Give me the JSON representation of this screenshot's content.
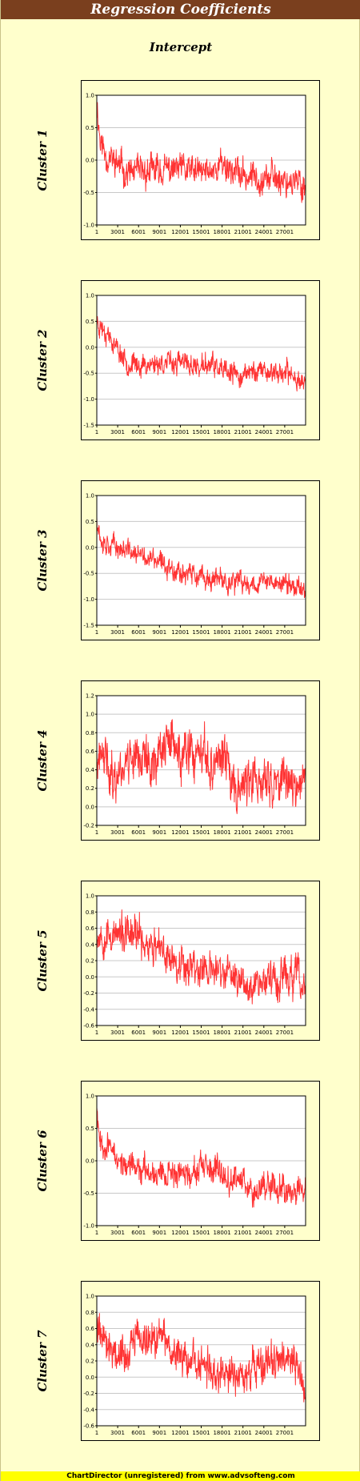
{
  "title": "Regression Coefficients",
  "subtitle": "Intercept",
  "footer": "ChartDirector (unregistered) from www.advsofteng.com",
  "series_color": "#ff3333",
  "chart_data": [
    {
      "type": "line",
      "label": "Cluster 1",
      "x_ticks": [
        "1",
        "3001",
        "6001",
        "9001",
        "12001",
        "15001",
        "18001",
        "21001",
        "24001",
        "27001"
      ],
      "x_range": [
        1,
        30000
      ],
      "y_ticks": [
        "1.0",
        "0.5",
        "0.0",
        "-0.5",
        "-1.0"
      ],
      "ylim": [
        -1.0,
        1.0
      ],
      "grid": true,
      "trend": [
        [
          1,
          0.9
        ],
        [
          500,
          0.3
        ],
        [
          1500,
          0.05
        ],
        [
          3000,
          -0.05
        ],
        [
          4500,
          -0.2
        ],
        [
          6001,
          -0.2
        ],
        [
          9001,
          -0.15
        ],
        [
          12001,
          -0.15
        ],
        [
          15001,
          -0.2
        ],
        [
          16500,
          -0.15
        ],
        [
          18001,
          -0.05
        ],
        [
          19500,
          -0.15
        ],
        [
          21001,
          -0.25
        ],
        [
          24001,
          -0.25
        ],
        [
          27001,
          -0.3
        ],
        [
          30000,
          -0.4
        ]
      ],
      "amplitude": 0.25,
      "seed": 11
    },
    {
      "type": "line",
      "label": "Cluster 2",
      "x_ticks": [
        "1",
        "3001",
        "6001",
        "9001",
        "12001",
        "15001",
        "18001",
        "21001",
        "24001",
        "27001"
      ],
      "x_range": [
        1,
        30000
      ],
      "y_ticks": [
        "1.0",
        "0.5",
        "0.0",
        "-0.5",
        "-1.0",
        "-1.5"
      ],
      "ylim": [
        -1.5,
        1.0
      ],
      "grid": true,
      "trend": [
        [
          1,
          0.5
        ],
        [
          1500,
          0.3
        ],
        [
          3001,
          -0.05
        ],
        [
          4500,
          -0.3
        ],
        [
          6001,
          -0.35
        ],
        [
          9001,
          -0.3
        ],
        [
          12001,
          -0.3
        ],
        [
          15001,
          -0.4
        ],
        [
          16500,
          -0.3
        ],
        [
          18001,
          -0.5
        ],
        [
          21001,
          -0.55
        ],
        [
          22500,
          -0.45
        ],
        [
          24001,
          -0.45
        ],
        [
          27001,
          -0.5
        ],
        [
          30000,
          -0.65
        ]
      ],
      "amplitude": 0.22,
      "seed": 23
    },
    {
      "type": "line",
      "label": "Cluster 3",
      "x_ticks": [
        "1",
        "3001",
        "6001",
        "9001",
        "12001",
        "15001",
        "18001",
        "21001",
        "24001",
        "27001"
      ],
      "x_range": [
        1,
        30000
      ],
      "y_ticks": [
        "1.0",
        "0.5",
        "0.0",
        "-0.5",
        "-1.0",
        "-1.5"
      ],
      "ylim": [
        -1.5,
        1.0
      ],
      "grid": true,
      "trend": [
        [
          1,
          0.6
        ],
        [
          600,
          0.15
        ],
        [
          3001,
          0.0
        ],
        [
          6001,
          -0.15
        ],
        [
          9001,
          -0.3
        ],
        [
          12001,
          -0.45
        ],
        [
          15001,
          -0.6
        ],
        [
          18001,
          -0.65
        ],
        [
          21001,
          -0.7
        ],
        [
          24001,
          -0.65
        ],
        [
          27001,
          -0.7
        ],
        [
          30000,
          -0.8
        ]
      ],
      "amplitude": 0.22,
      "seed": 37
    },
    {
      "type": "line",
      "label": "Cluster 4",
      "x_ticks": [
        "1",
        "3001",
        "6001",
        "9001",
        "12001",
        "15001",
        "18001",
        "21001",
        "24001",
        "27001"
      ],
      "x_range": [
        1,
        30000
      ],
      "y_ticks": [
        "1.2",
        "1.0",
        "0.8",
        "0.6",
        "0.4",
        "0.2",
        "0.0",
        "-0.2"
      ],
      "ylim": [
        -0.2,
        1.2
      ],
      "grid": true,
      "trend": [
        [
          1,
          0.45
        ],
        [
          1500,
          0.5
        ],
        [
          2500,
          0.3
        ],
        [
          4500,
          0.55
        ],
        [
          6001,
          0.6
        ],
        [
          7500,
          0.45
        ],
        [
          9001,
          0.6
        ],
        [
          10500,
          0.7
        ],
        [
          12001,
          0.55
        ],
        [
          15001,
          0.5
        ],
        [
          16500,
          0.45
        ],
        [
          18001,
          0.55
        ],
        [
          19500,
          0.3
        ],
        [
          21001,
          0.25
        ],
        [
          24001,
          0.25
        ],
        [
          27001,
          0.3
        ],
        [
          30000,
          0.25
        ]
      ],
      "amplitude": 0.28,
      "seed": 41
    },
    {
      "type": "line",
      "label": "Cluster 5",
      "x_ticks": [
        "1",
        "3001",
        "6001",
        "9001",
        "12001",
        "15001",
        "18001",
        "21001",
        "24001",
        "27001"
      ],
      "x_range": [
        1,
        30000
      ],
      "y_ticks": [
        "1.0",
        "0.8",
        "0.6",
        "0.4",
        "0.2",
        "0.0",
        "-0.2",
        "-0.4",
        "-0.6"
      ],
      "ylim": [
        -0.6,
        1.0
      ],
      "grid": true,
      "trend": [
        [
          1,
          0.55
        ],
        [
          3001,
          0.5
        ],
        [
          6001,
          0.5
        ],
        [
          7500,
          0.4
        ],
        [
          9001,
          0.3
        ],
        [
          12001,
          0.2
        ],
        [
          15001,
          0.1
        ],
        [
          18001,
          0.05
        ],
        [
          21001,
          -0.05
        ],
        [
          24001,
          -0.05
        ],
        [
          27001,
          0.0
        ],
        [
          29000,
          0.0
        ],
        [
          30000,
          -0.25
        ]
      ],
      "amplitude": 0.25,
      "seed": 53
    },
    {
      "type": "line",
      "label": "Cluster 6",
      "x_ticks": [
        "1",
        "3001",
        "6001",
        "9001",
        "12001",
        "15001",
        "18001",
        "21001",
        "24001",
        "27001"
      ],
      "x_range": [
        1,
        30000
      ],
      "y_ticks": [
        "1.0",
        "0.5",
        "0.0",
        "-0.5",
        "-1.0"
      ],
      "ylim": [
        -1.0,
        1.0
      ],
      "grid": true,
      "trend": [
        [
          1,
          0.9
        ],
        [
          500,
          0.3
        ],
        [
          1500,
          0.25
        ],
        [
          3001,
          0.0
        ],
        [
          6001,
          -0.15
        ],
        [
          9001,
          -0.15
        ],
        [
          12001,
          -0.2
        ],
        [
          15001,
          -0.15
        ],
        [
          18001,
          -0.2
        ],
        [
          21001,
          -0.3
        ],
        [
          22500,
          -0.45
        ],
        [
          24001,
          -0.35
        ],
        [
          27001,
          -0.4
        ],
        [
          30000,
          -0.45
        ]
      ],
      "amplitude": 0.22,
      "seed": 67
    },
    {
      "type": "line",
      "label": "Cluster 7",
      "x_ticks": [
        "1",
        "3001",
        "6001",
        "9001",
        "12001",
        "15001",
        "18001",
        "21001",
        "24001",
        "27001"
      ],
      "x_range": [
        1,
        30000
      ],
      "y_ticks": [
        "1.0",
        "0.8",
        "0.6",
        "0.4",
        "0.2",
        "0.0",
        "-0.2",
        "-0.4",
        "-0.6"
      ],
      "ylim": [
        -0.6,
        1.0
      ],
      "grid": true,
      "trend": [
        [
          1,
          0.65
        ],
        [
          1500,
          0.45
        ],
        [
          3001,
          0.3
        ],
        [
          4500,
          0.3
        ],
        [
          6001,
          0.5
        ],
        [
          7500,
          0.45
        ],
        [
          9001,
          0.55
        ],
        [
          10500,
          0.35
        ],
        [
          12001,
          0.25
        ],
        [
          15001,
          0.1
        ],
        [
          18001,
          0.05
        ],
        [
          21001,
          0.0
        ],
        [
          24001,
          0.15
        ],
        [
          27001,
          0.2
        ],
        [
          29000,
          0.1
        ],
        [
          30000,
          -0.3
        ]
      ],
      "amplitude": 0.25,
      "seed": 79
    }
  ]
}
